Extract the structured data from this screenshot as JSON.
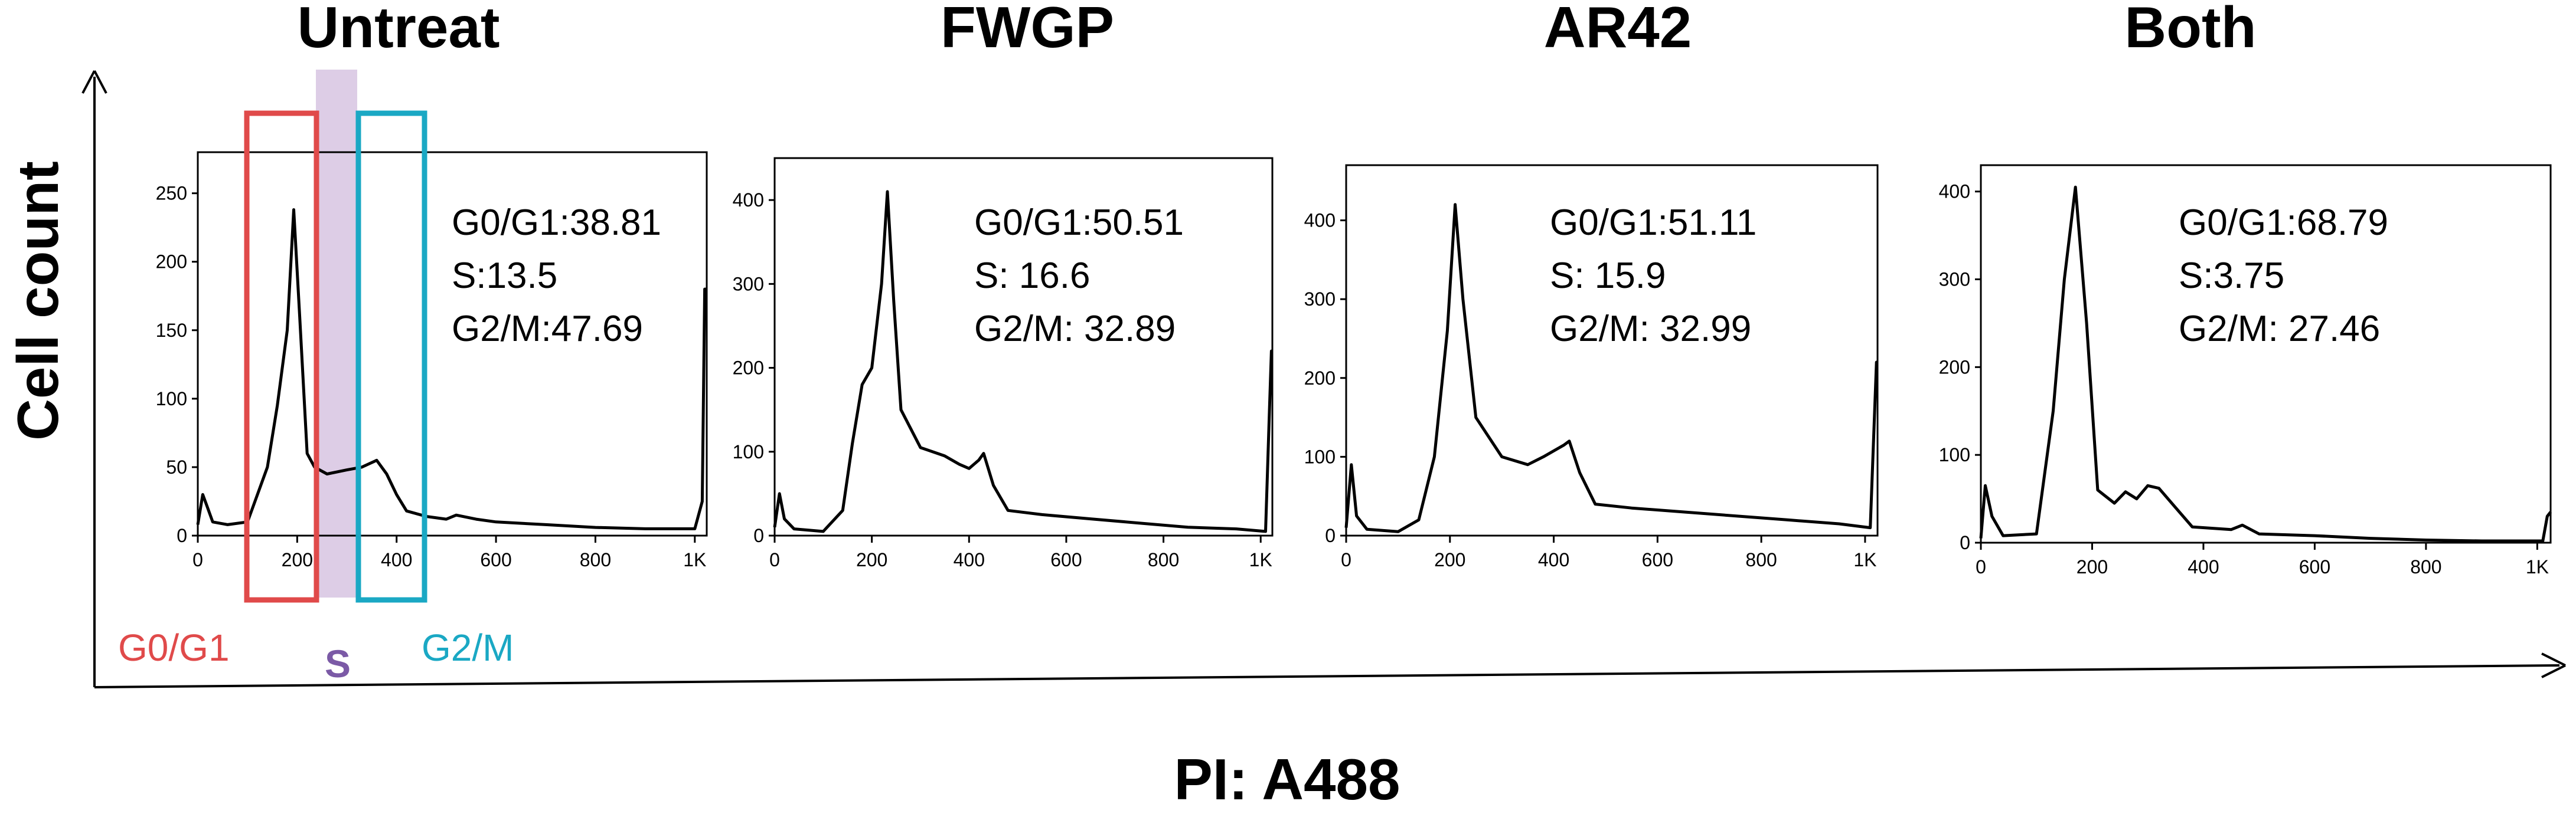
{
  "figure": {
    "y_axis_label": "Cell count",
    "x_axis_label": "PI: A488",
    "gate_labels": {
      "g0g1": {
        "text": "G0/G1",
        "color": "#e04a4a"
      },
      "s": {
        "text": "S",
        "color": "#7b5aa6",
        "band_color": "#d9c8e3"
      },
      "g2m": {
        "text": "G2/M",
        "color": "#1aa8c4"
      }
    }
  },
  "chart_data": [
    {
      "type": "line",
      "title": "Untreat",
      "x_ticks": [
        "0",
        "200",
        "400",
        "600",
        "800",
        "1K"
      ],
      "xlim": [
        0,
        1024
      ],
      "ylim": [
        0,
        280
      ],
      "y_ticks": [
        0,
        50,
        100,
        150,
        200,
        250
      ],
      "stats": [
        "G0/G1:38.81",
        "S:13.5",
        "G2/M:47.69"
      ],
      "series": [
        {
          "points": [
            [
              0,
              8
            ],
            [
              10,
              30
            ],
            [
              18,
              22
            ],
            [
              30,
              10
            ],
            [
              60,
              8
            ],
            [
              100,
              10
            ],
            [
              140,
              50
            ],
            [
              160,
              95
            ],
            [
              180,
              150
            ],
            [
              193,
              238
            ],
            [
              205,
              160
            ],
            [
              220,
              60
            ],
            [
              235,
              50
            ],
            [
              260,
              45
            ],
            [
              300,
              48
            ],
            [
              330,
              50
            ],
            [
              360,
              55
            ],
            [
              380,
              45
            ],
            [
              400,
              30
            ],
            [
              420,
              18
            ],
            [
              460,
              14
            ],
            [
              500,
              12
            ],
            [
              520,
              15
            ],
            [
              560,
              12
            ],
            [
              600,
              10
            ],
            [
              700,
              8
            ],
            [
              800,
              6
            ],
            [
              900,
              5
            ],
            [
              1000,
              5
            ],
            [
              1015,
              25
            ],
            [
              1020,
              180
            ],
            [
              1024,
              180
            ]
          ]
        }
      ]
    },
    {
      "type": "line",
      "title": "FWGP",
      "x_ticks": [
        "0",
        "200",
        "400",
        "600",
        "800",
        "1K"
      ],
      "xlim": [
        0,
        1024
      ],
      "ylim": [
        0,
        450
      ],
      "y_ticks": [
        0,
        100,
        200,
        300,
        400
      ],
      "stats": [
        "G0/G1:50.51",
        "S: 16.6",
        "G2/M: 32.89"
      ],
      "series": [
        {
          "points": [
            [
              0,
              10
            ],
            [
              10,
              50
            ],
            [
              20,
              20
            ],
            [
              40,
              8
            ],
            [
              100,
              5
            ],
            [
              140,
              30
            ],
            [
              160,
              110
            ],
            [
              180,
              180
            ],
            [
              200,
              200
            ],
            [
              220,
              300
            ],
            [
              232,
              410
            ],
            [
              245,
              280
            ],
            [
              260,
              150
            ],
            [
              300,
              105
            ],
            [
              350,
              95
            ],
            [
              380,
              85
            ],
            [
              400,
              80
            ],
            [
              420,
              90
            ],
            [
              430,
              98
            ],
            [
              450,
              60
            ],
            [
              480,
              30
            ],
            [
              550,
              25
            ],
            [
              650,
              20
            ],
            [
              750,
              15
            ],
            [
              850,
              10
            ],
            [
              950,
              8
            ],
            [
              1010,
              5
            ],
            [
              1018,
              150
            ],
            [
              1022,
              220
            ],
            [
              1024,
              220
            ]
          ]
        }
      ]
    },
    {
      "type": "line",
      "title": "AR42",
      "x_ticks": [
        "0",
        "200",
        "400",
        "600",
        "800",
        "1K"
      ],
      "xlim": [
        0,
        1024
      ],
      "ylim": [
        0,
        470
      ],
      "y_ticks": [
        0,
        100,
        200,
        300,
        400
      ],
      "stats": [
        "G0/G1:51.11",
        "S: 15.9",
        "G2/M: 32.99"
      ],
      "series": [
        {
          "points": [
            [
              0,
              10
            ],
            [
              10,
              90
            ],
            [
              20,
              25
            ],
            [
              40,
              8
            ],
            [
              100,
              5
            ],
            [
              140,
              20
            ],
            [
              170,
              100
            ],
            [
              195,
              260
            ],
            [
              210,
              420
            ],
            [
              225,
              300
            ],
            [
              250,
              150
            ],
            [
              300,
              100
            ],
            [
              350,
              90
            ],
            [
              380,
              100
            ],
            [
              420,
              115
            ],
            [
              430,
              120
            ],
            [
              450,
              80
            ],
            [
              480,
              40
            ],
            [
              550,
              35
            ],
            [
              650,
              30
            ],
            [
              750,
              25
            ],
            [
              850,
              20
            ],
            [
              950,
              15
            ],
            [
              1010,
              10
            ],
            [
              1018,
              150
            ],
            [
              1022,
              220
            ],
            [
              1024,
              220
            ]
          ]
        }
      ]
    },
    {
      "type": "line",
      "title": "Both",
      "x_ticks": [
        "0",
        "200",
        "400",
        "600",
        "800",
        "1K"
      ],
      "xlim": [
        0,
        1024
      ],
      "ylim": [
        0,
        430
      ],
      "y_ticks": [
        0,
        100,
        200,
        300,
        400
      ],
      "stats": [
        "G0/G1:68.79",
        "S:3.75",
        "G2/M: 27.46"
      ],
      "series": [
        {
          "points": [
            [
              0,
              5
            ],
            [
              8,
              65
            ],
            [
              20,
              30
            ],
            [
              40,
              8
            ],
            [
              100,
              10
            ],
            [
              130,
              150
            ],
            [
              150,
              300
            ],
            [
              170,
              405
            ],
            [
              190,
              250
            ],
            [
              210,
              60
            ],
            [
              240,
              45
            ],
            [
              260,
              58
            ],
            [
              280,
              50
            ],
            [
              300,
              65
            ],
            [
              320,
              62
            ],
            [
              350,
              40
            ],
            [
              380,
              18
            ],
            [
              450,
              15
            ],
            [
              470,
              20
            ],
            [
              500,
              10
            ],
            [
              600,
              8
            ],
            [
              700,
              5
            ],
            [
              800,
              3
            ],
            [
              900,
              2
            ],
            [
              1010,
              2
            ],
            [
              1018,
              30
            ],
            [
              1024,
              35
            ]
          ]
        }
      ]
    }
  ]
}
